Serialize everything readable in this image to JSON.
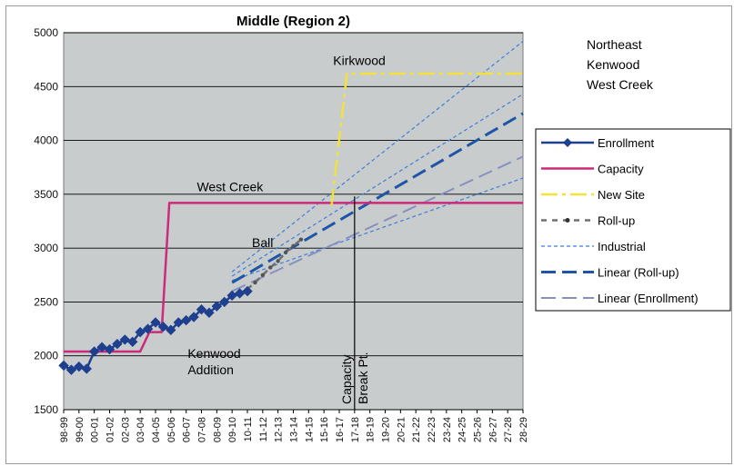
{
  "chart_data": {
    "type": "line",
    "title": "Middle (Region 2)",
    "xlabel": "",
    "ylabel": "",
    "ylim": [
      1500,
      5000
    ],
    "yticks": [
      1500,
      2000,
      2500,
      3000,
      3500,
      4000,
      4500,
      5000
    ],
    "grid": "horizontal",
    "legend_position": "right",
    "categories": [
      "98-99",
      "99-00",
      "00-01",
      "01-02",
      "02-03",
      "03-04",
      "04-05",
      "05-06",
      "06-07",
      "07-08",
      "08-09",
      "09-10",
      "10-11",
      "11-12",
      "12-13",
      "13-14",
      "14-15",
      "15-16",
      "16-17",
      "17-18",
      "18-19",
      "19-20",
      "20-21",
      "21-22",
      "22-23",
      "23-24",
      "24-25",
      "25-26",
      "26-27",
      "27-28",
      "28-29"
    ],
    "series": [
      {
        "name": "Enrollment",
        "color": "#1f3f8f",
        "style": "solid-diamond",
        "points": [
          [
            0,
            1910
          ],
          [
            0.5,
            1870
          ],
          [
            1,
            1900
          ],
          [
            1.5,
            1880
          ],
          [
            2,
            2040
          ],
          [
            2.5,
            2080
          ],
          [
            3,
            2060
          ],
          [
            3.5,
            2110
          ],
          [
            4,
            2150
          ],
          [
            4.5,
            2130
          ],
          [
            5,
            2220
          ],
          [
            5.5,
            2250
          ],
          [
            6,
            2310
          ],
          [
            6.5,
            2270
          ],
          [
            7,
            2240
          ],
          [
            7.5,
            2310
          ],
          [
            8,
            2330
          ],
          [
            8.5,
            2360
          ],
          [
            9,
            2430
          ],
          [
            9.5,
            2400
          ],
          [
            10,
            2460
          ],
          [
            10.5,
            2500
          ],
          [
            11,
            2560
          ],
          [
            11.5,
            2580
          ],
          [
            12,
            2600
          ]
        ]
      },
      {
        "name": "Capacity",
        "color": "#cc2a7a",
        "style": "solid",
        "points": [
          [
            0,
            2040
          ],
          [
            5,
            2040
          ],
          [
            5.6,
            2220
          ],
          [
            6.4,
            2220
          ],
          [
            6.9,
            3420
          ],
          [
            30,
            3420
          ]
        ]
      },
      {
        "name": "New Site",
        "color": "#f2e23a",
        "style": "dashdot",
        "points": [
          [
            17.5,
            3400
          ],
          [
            18.5,
            4620
          ],
          [
            30,
            4620
          ]
        ]
      },
      {
        "name": "Roll-up",
        "color": "#707070",
        "style": "dash-dot-marker",
        "points": [
          [
            12,
            2620
          ],
          [
            12.5,
            2680
          ],
          [
            13,
            2750
          ],
          [
            13.5,
            2820
          ],
          [
            14,
            2880
          ],
          [
            14.5,
            2960
          ],
          [
            15,
            3020
          ],
          [
            15.5,
            3080
          ]
        ]
      },
      {
        "name": "Industrial",
        "color": "#3f7ed8",
        "style": "short-dash",
        "points": []
      },
      {
        "name": "Linear (Roll-up)",
        "color": "#1f55a8",
        "style": "long-dash",
        "points": [
          [
            11,
            2680
          ],
          [
            30,
            4250
          ]
        ]
      },
      {
        "name": "Linear (Enrollment)",
        "color": "#8890c0",
        "style": "long-dash",
        "points": [
          [
            11,
            2600
          ],
          [
            30,
            3850
          ]
        ]
      }
    ],
    "industrial_lines": [
      [
        [
          11,
          2780
        ],
        [
          30,
          4920
        ]
      ],
      [
        [
          11,
          2740
        ],
        [
          30,
          4430
        ]
      ],
      [
        [
          11,
          2700
        ],
        [
          30,
          3650
        ]
      ]
    ],
    "vertical_marker": {
      "x": 19,
      "ymin": 1500,
      "ymax": 3480,
      "labels": [
        "Capacity",
        "Break Pt."
      ]
    },
    "annotations": [
      {
        "text": "Kirkwood",
        "x": 17.6,
        "y": 4700
      },
      {
        "text": "West Creek",
        "x": 8.7,
        "y": 3530
      },
      {
        "text": "Kenwood",
        "x": 8.1,
        "y": 1980
      },
      {
        "text": "Addition",
        "x": 8.1,
        "y": 1830
      },
      {
        "text": "Ball",
        "x": 12.3,
        "y": 3010
      }
    ],
    "side_note": [
      "Northeast",
      "Kenwood",
      "West Creek"
    ]
  }
}
